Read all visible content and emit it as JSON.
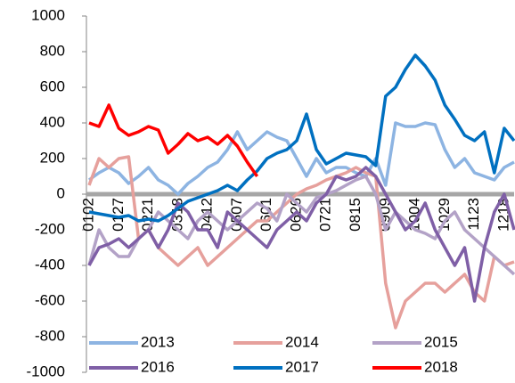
{
  "chart_data": {
    "type": "line",
    "categories": [
      "0102",
      null,
      null,
      "0127",
      null,
      null,
      "0221",
      null,
      null,
      "0318",
      null,
      null,
      "0412",
      null,
      null,
      "0507",
      null,
      null,
      "0601",
      null,
      null,
      "0626",
      null,
      null,
      "0721",
      null,
      null,
      "0815",
      null,
      null,
      "0909",
      null,
      null,
      "1004",
      null,
      null,
      "1029",
      null,
      null,
      "1123",
      null,
      null,
      "1218",
      null
    ],
    "ylim": [
      -1000,
      1000
    ],
    "yticks": [
      -1000,
      -800,
      -600,
      -400,
      -200,
      0,
      200,
      400,
      600,
      800,
      1000
    ],
    "series": [
      {
        "name": "2013",
        "color": "#8db4e2",
        "values": [
          80,
          120,
          150,
          120,
          60,
          100,
          150,
          80,
          50,
          0,
          60,
          100,
          150,
          180,
          250,
          350,
          250,
          300,
          350,
          320,
          300,
          200,
          100,
          200,
          120,
          150,
          150,
          120,
          100,
          200,
          50,
          400,
          380,
          380,
          400,
          390,
          250,
          150,
          200,
          120,
          100,
          80,
          150,
          180
        ]
      },
      {
        "name": "2014",
        "color": "#e6a09c",
        "values": [
          50,
          200,
          150,
          200,
          210,
          -250,
          -200,
          -300,
          -350,
          -400,
          -350,
          -300,
          -400,
          -350,
          -300,
          -250,
          -200,
          -150,
          -150,
          -100,
          -50,
          0,
          30,
          50,
          80,
          100,
          120,
          150,
          120,
          100,
          -500,
          -750,
          -600,
          -550,
          -500,
          -500,
          -550,
          -500,
          -450,
          -550,
          -600,
          -350,
          -400,
          -380
        ]
      },
      {
        "name": "2015",
        "color": "#b3a2c7",
        "values": [
          -400,
          -200,
          -300,
          -350,
          -350,
          -250,
          -200,
          -100,
          -150,
          -200,
          -250,
          -150,
          -100,
          -150,
          -200,
          -150,
          -100,
          -50,
          -80,
          -150,
          0,
          -50,
          -100,
          -20,
          0,
          20,
          50,
          80,
          100,
          0,
          -200,
          -100,
          -150,
          -200,
          -220,
          -250,
          -150,
          -100,
          -200,
          -250,
          -300,
          -350,
          -400,
          -450
        ]
      },
      {
        "name": "2016",
        "color": "#7f5fa6",
        "values": [
          -400,
          -300,
          -280,
          -250,
          -300,
          -250,
          -200,
          -300,
          -200,
          -50,
          -100,
          -200,
          -200,
          -300,
          -100,
          -150,
          -200,
          -250,
          -300,
          -200,
          -150,
          -100,
          -150,
          -50,
          0,
          100,
          80,
          100,
          150,
          100,
          0,
          -100,
          -200,
          -150,
          -50,
          -200,
          -300,
          -400,
          -300,
          -600,
          -300,
          -100,
          0,
          -200
        ]
      },
      {
        "name": "2017",
        "color": "#0070c0",
        "values": [
          -100,
          -110,
          -120,
          -130,
          -120,
          -150,
          -140,
          -150,
          -120,
          -80,
          -40,
          -20,
          0,
          20,
          50,
          20,
          80,
          130,
          200,
          230,
          250,
          300,
          450,
          250,
          170,
          200,
          230,
          220,
          210,
          160,
          550,
          600,
          700,
          780,
          720,
          640,
          500,
          420,
          330,
          300,
          350,
          120,
          370,
          300
        ]
      },
      {
        "name": "2018",
        "color": "#ff0000",
        "values": [
          400,
          380,
          500,
          370,
          330,
          350,
          380,
          360,
          230,
          280,
          340,
          300,
          320,
          280,
          330,
          270,
          180,
          100,
          null,
          null,
          null,
          null,
          null,
          null,
          null,
          null,
          null,
          null,
          null,
          null,
          null,
          null,
          null,
          null,
          null,
          null,
          null,
          null,
          null,
          null,
          null,
          null,
          null,
          null
        ]
      }
    ]
  }
}
